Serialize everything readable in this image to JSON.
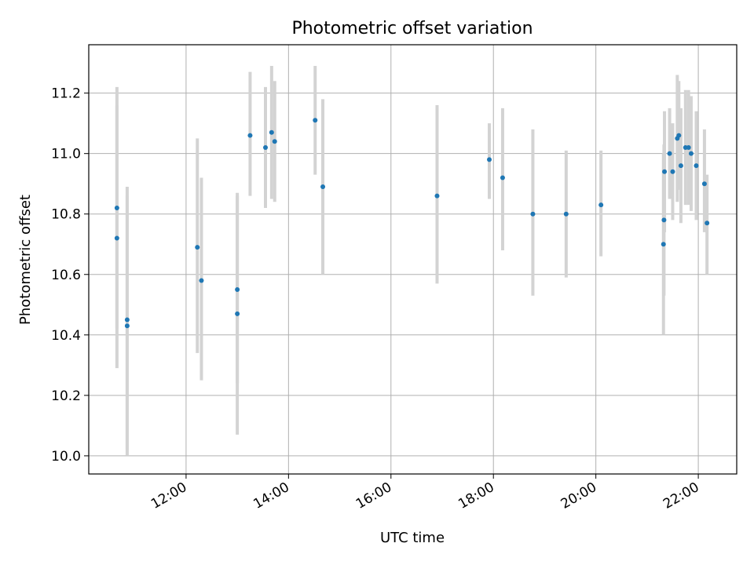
{
  "chart_data": {
    "type": "scatter",
    "title": "Photometric offset variation",
    "xlabel": "UTC time",
    "ylabel": "Photometric offset",
    "x_unit": "hours (UTC)",
    "xlim": [
      10.1,
      22.75
    ],
    "ylim": [
      9.94,
      11.36
    ],
    "grid": true,
    "legend": "none",
    "x_ticks": [
      {
        "value": 12,
        "label": "12:00"
      },
      {
        "value": 14,
        "label": "14:00"
      },
      {
        "value": 16,
        "label": "16:00"
      },
      {
        "value": 18,
        "label": "18:00"
      },
      {
        "value": 20,
        "label": "20:00"
      },
      {
        "value": 22,
        "label": "22:00"
      }
    ],
    "y_ticks": [
      {
        "value": 10.0,
        "label": "10.0"
      },
      {
        "value": 10.2,
        "label": "10.2"
      },
      {
        "value": 10.4,
        "label": "10.4"
      },
      {
        "value": 10.6,
        "label": "10.6"
      },
      {
        "value": 10.8,
        "label": "10.8"
      },
      {
        "value": 11.0,
        "label": "11.0"
      },
      {
        "value": 11.2,
        "label": "11.2"
      }
    ],
    "colors": {
      "point": "#1f77b4",
      "errorbar": "#d3d3d3",
      "grid": "#b0b0b0",
      "axes": "#000000"
    },
    "series": [
      {
        "points": [
          {
            "time": "10:39",
            "x": 10.65,
            "y": 10.72,
            "err_low": 10.29,
            "err_high": 11.16
          },
          {
            "time": "10:39",
            "x": 10.65,
            "y": 10.82,
            "err_low": 10.42,
            "err_high": 11.22
          },
          {
            "time": "10:51",
            "x": 10.85,
            "y": 10.45,
            "err_low": 10.02,
            "err_high": 10.89
          },
          {
            "time": "10:51",
            "x": 10.85,
            "y": 10.43,
            "err_low": 10.0,
            "err_high": 10.86
          },
          {
            "time": "12:13",
            "x": 12.22,
            "y": 10.69,
            "err_low": 10.34,
            "err_high": 11.05
          },
          {
            "time": "12:18",
            "x": 12.3,
            "y": 10.58,
            "err_low": 10.25,
            "err_high": 10.92
          },
          {
            "time": "13:00",
            "x": 13.0,
            "y": 10.55,
            "err_low": 10.24,
            "err_high": 10.87
          },
          {
            "time": "13:00",
            "x": 13.0,
            "y": 10.47,
            "err_low": 10.07,
            "err_high": 10.86
          },
          {
            "time": "13:15",
            "x": 13.25,
            "y": 11.06,
            "err_low": 10.86,
            "err_high": 11.27
          },
          {
            "time": "13:33",
            "x": 13.55,
            "y": 11.02,
            "err_low": 10.82,
            "err_high": 11.22
          },
          {
            "time": "13:40",
            "x": 13.67,
            "y": 11.07,
            "err_low": 10.85,
            "err_high": 11.29
          },
          {
            "time": "13:44",
            "x": 13.73,
            "y": 11.04,
            "err_low": 10.84,
            "err_high": 11.24
          },
          {
            "time": "14:31",
            "x": 14.52,
            "y": 11.11,
            "err_low": 10.93,
            "err_high": 11.29
          },
          {
            "time": "14:40",
            "x": 14.67,
            "y": 10.89,
            "err_low": 10.6,
            "err_high": 11.18
          },
          {
            "time": "16:54",
            "x": 16.9,
            "y": 10.86,
            "err_low": 10.57,
            "err_high": 11.16
          },
          {
            "time": "17:55",
            "x": 17.92,
            "y": 10.98,
            "err_low": 10.85,
            "err_high": 11.1
          },
          {
            "time": "18:11",
            "x": 18.18,
            "y": 10.92,
            "err_low": 10.68,
            "err_high": 11.15
          },
          {
            "time": "18:46",
            "x": 18.77,
            "y": 10.8,
            "err_low": 10.53,
            "err_high": 11.08
          },
          {
            "time": "19:25",
            "x": 19.42,
            "y": 10.8,
            "err_low": 10.59,
            "err_high": 11.01
          },
          {
            "time": "20:06",
            "x": 20.1,
            "y": 10.83,
            "err_low": 10.66,
            "err_high": 11.01
          },
          {
            "time": "21:19",
            "x": 21.32,
            "y": 10.7,
            "err_low": 10.4,
            "err_high": 11.0
          },
          {
            "time": "21:20",
            "x": 21.33,
            "y": 10.78,
            "err_low": 10.53,
            "err_high": 11.03
          },
          {
            "time": "21:20",
            "x": 21.34,
            "y": 10.94,
            "err_low": 10.74,
            "err_high": 11.14
          },
          {
            "time": "21:26",
            "x": 21.44,
            "y": 11.0,
            "err_low": 10.85,
            "err_high": 11.15
          },
          {
            "time": "21:30",
            "x": 21.5,
            "y": 10.94,
            "err_low": 10.78,
            "err_high": 11.1
          },
          {
            "time": "21:35",
            "x": 21.59,
            "y": 11.05,
            "err_low": 10.84,
            "err_high": 11.26
          },
          {
            "time": "21:37",
            "x": 21.62,
            "y": 11.06,
            "err_low": 10.88,
            "err_high": 11.24
          },
          {
            "time": "21:40",
            "x": 21.66,
            "y": 10.96,
            "err_low": 10.77,
            "err_high": 11.15
          },
          {
            "time": "21:45",
            "x": 21.75,
            "y": 11.02,
            "err_low": 10.83,
            "err_high": 11.21
          },
          {
            "time": "21:49",
            "x": 21.81,
            "y": 11.02,
            "err_low": 10.83,
            "err_high": 11.21
          },
          {
            "time": "21:52",
            "x": 21.86,
            "y": 11.0,
            "err_low": 10.81,
            "err_high": 11.19
          },
          {
            "time": "21:58",
            "x": 21.96,
            "y": 10.96,
            "err_low": 10.78,
            "err_high": 11.14
          },
          {
            "time": "22:07",
            "x": 22.12,
            "y": 10.9,
            "err_low": 10.74,
            "err_high": 11.08
          },
          {
            "time": "22:10",
            "x": 22.17,
            "y": 10.77,
            "err_low": 10.6,
            "err_high": 10.93
          }
        ]
      }
    ]
  }
}
